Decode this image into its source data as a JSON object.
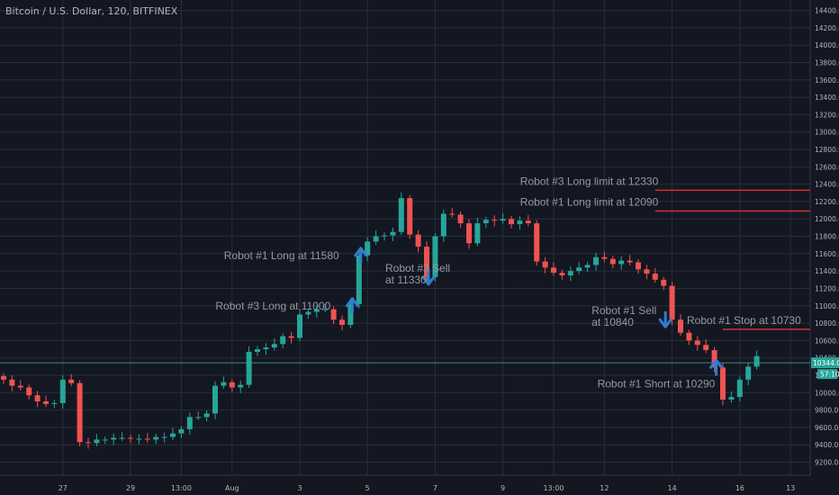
{
  "header": {
    "title": "Bitcoin / U.S. Dollar, 120, BITFINEX"
  },
  "colors": {
    "background": "#131722",
    "grid": "#2a2e39",
    "up": "#26a69a",
    "down": "#ef5350",
    "axis_text": "#b2b5be",
    "annotation_text": "#9598a1",
    "arrow": "#2f7dd1",
    "level_line": "#d32f2f",
    "price_line": "#3c8a72",
    "price_label_bg": "#26a69a"
  },
  "chart_data": {
    "type": "candlestick",
    "symbol": "Bitcoin / U.S. Dollar",
    "interval": "120",
    "exchange": "BITFINEX",
    "ylim": [
      9050,
      14520
    ],
    "y_ticks": [
      9200,
      9400,
      9600,
      9800,
      10000,
      10200,
      10400,
      10600,
      10800,
      11000,
      11200,
      11400,
      11600,
      11800,
      12000,
      12200,
      12400,
      12600,
      12800,
      13000,
      13200,
      13400,
      13600,
      13800,
      14000,
      14200,
      14400
    ],
    "x_ticks": [
      {
        "label": "27",
        "bar": 7
      },
      {
        "label": "29",
        "bar": 15
      },
      {
        "label": "13:00",
        "bar": 21
      },
      {
        "label": "Aug",
        "bar": 27
      },
      {
        "label": "3",
        "bar": 35
      },
      {
        "label": "5",
        "bar": 43
      },
      {
        "label": "7",
        "bar": 51
      },
      {
        "label": "9",
        "bar": 59
      },
      {
        "label": "13:00",
        "bar": 65
      },
      {
        "label": "12",
        "bar": 71
      },
      {
        "label": "14",
        "bar": 79
      },
      {
        "label": "16",
        "bar": 87
      },
      {
        "label": "13",
        "bar": 93
      }
    ],
    "closes": [
      10150,
      10080,
      10060,
      9970,
      9900,
      9870,
      9880,
      10150,
      10110,
      9430,
      9420,
      9460,
      9460,
      9480,
      9480,
      9470,
      9470,
      9460,
      9490,
      9490,
      9530,
      9580,
      9720,
      9720,
      9760,
      10080,
      10120,
      10060,
      10090,
      10470,
      10500,
      10520,
      10560,
      10650,
      10630,
      10900,
      10930,
      10960,
      10960,
      10840,
      10780,
      11020,
      11580,
      11740,
      11800,
      11810,
      11850,
      12240,
      11820,
      11680,
      11330,
      11800,
      12060,
      12050,
      11950,
      11720,
      11950,
      11990,
      11980,
      12000,
      11940,
      11980,
      11950,
      11510,
      11440,
      11380,
      11350,
      11400,
      11440,
      11470,
      11560,
      11540,
      11480,
      11520,
      11500,
      11420,
      11370,
      11300,
      11230,
      10840,
      10690,
      10600,
      10550,
      10490,
      10290,
      9920,
      9950,
      10150,
      10300,
      10420
    ],
    "current_price": 10344,
    "current_price_label": "10344.0",
    "countdown_label": "57:10",
    "price_line": 10344,
    "annotations": [
      {
        "text": "Robot #3 Long limit at 12330",
        "price": 12330,
        "line_start_bar": 77,
        "kind": "level"
      },
      {
        "text": "Robot #1 Long limit at 12090",
        "price": 12090,
        "line_start_bar": 77,
        "kind": "level"
      },
      {
        "text": "Robot #1 Stop at 10730",
        "price": 10730,
        "line_start_bar": 85,
        "kind": "level"
      },
      {
        "text": "Robot #1 Long at 11580",
        "bar": 42,
        "price": 11580,
        "arrow": "up"
      },
      {
        "text": "Robot #3 Sell at 11330",
        "bar": 50,
        "price": 11330,
        "arrow": "down"
      },
      {
        "text": "Robot #3 Long at 11000",
        "bar": 41,
        "price": 11000,
        "arrow": "up"
      },
      {
        "text": "Robot #1 Sell at 10840",
        "bar": 78,
        "price": 10840,
        "arrow": "down"
      },
      {
        "text": "Robot #1 Short at 10290",
        "bar": 84,
        "price": 10290,
        "arrow": "up"
      }
    ]
  }
}
